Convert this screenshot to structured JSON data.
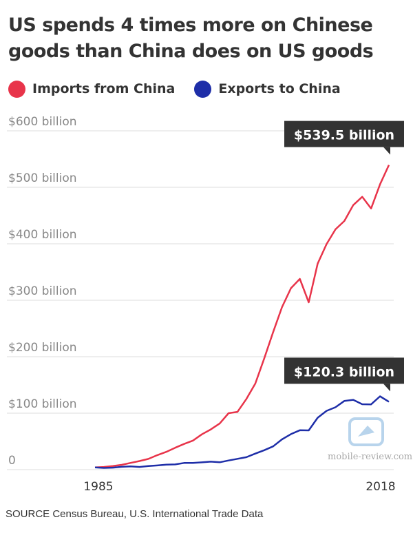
{
  "title": "US spends 4 times more on Chinese goods than China does on US goods",
  "source": "SOURCE Census Bureau, U.S. International Trade Data",
  "watermark": "mobile-review.com",
  "colors": {
    "imports": "#e8344a",
    "exports": "#1e2ea8",
    "callout": "#333333",
    "grid": "#dddddd",
    "axis_text": "#888888"
  },
  "chart_data": {
    "type": "line",
    "x": [
      1985,
      1986,
      1987,
      1988,
      1989,
      1990,
      1991,
      1992,
      1993,
      1994,
      1995,
      1996,
      1997,
      1998,
      1999,
      2000,
      2001,
      2002,
      2003,
      2004,
      2005,
      2006,
      2007,
      2008,
      2009,
      2010,
      2011,
      2012,
      2013,
      2014,
      2015,
      2016,
      2017,
      2018
    ],
    "series": [
      {
        "name": "Imports from China",
        "color": "#e8344a",
        "values": [
          3.9,
          4.8,
          6.3,
          8.5,
          12.0,
          15.2,
          19.0,
          25.7,
          31.5,
          38.8,
          45.5,
          51.5,
          62.6,
          71.2,
          81.8,
          100.0,
          102.3,
          125.2,
          152.4,
          196.7,
          243.5,
          287.8,
          321.4,
          337.8,
          296.4,
          364.9,
          399.4,
          425.6,
          440.4,
          468.5,
          483.2,
          462.4,
          505.2,
          539.5
        ]
      },
      {
        "name": "Exports to China",
        "color": "#1e2ea8",
        "values": [
          3.9,
          3.1,
          3.5,
          5.0,
          5.8,
          4.8,
          6.3,
          7.4,
          8.8,
          9.3,
          11.8,
          12.0,
          12.9,
          14.2,
          13.1,
          16.2,
          19.2,
          22.1,
          28.4,
          34.4,
          41.2,
          53.7,
          62.9,
          69.7,
          69.5,
          91.9,
          104.1,
          110.5,
          121.7,
          123.7,
          115.9,
          115.6,
          129.9,
          120.3
        ]
      }
    ],
    "xticks": [
      "1985",
      "2018"
    ],
    "yticks": [
      {
        "value": 0,
        "label": "0"
      },
      {
        "value": 100,
        "label": "$100 billion"
      },
      {
        "value": 200,
        "label": "$200 billion"
      },
      {
        "value": 300,
        "label": "$300 billion"
      },
      {
        "value": 400,
        "label": "$400 billion"
      },
      {
        "value": 500,
        "label": "$500 billion"
      },
      {
        "value": 600,
        "label": "$600 billion"
      }
    ],
    "ylim": [
      0,
      600
    ],
    "xlim": [
      1985,
      2018
    ],
    "annotations": [
      {
        "series": 0,
        "label": "$539.5 billion"
      },
      {
        "series": 1,
        "label": "$120.3 billion"
      }
    ],
    "grid": true,
    "legend": "top-left"
  }
}
